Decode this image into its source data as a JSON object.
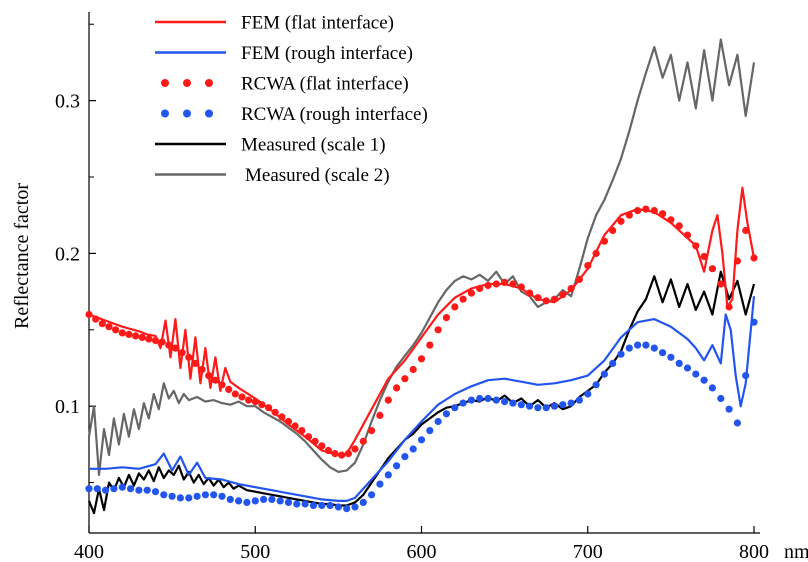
{
  "chart_data": {
    "type": "line",
    "title": "",
    "xlabel": "",
    "ylabel": "Reflectance factor",
    "x_unit_label": "nm",
    "xlim": [
      400,
      800
    ],
    "ylim": [
      0.017,
      0.358
    ],
    "xticks": [
      400,
      500,
      600,
      700,
      800
    ],
    "xtick_labels": [
      "400",
      "500",
      "600",
      "700",
      "800"
    ],
    "yticks": [
      0.1,
      0.2,
      0.3
    ],
    "ytick_labels": [
      "0.1",
      "0.2",
      "0.3"
    ],
    "grid": false,
    "legend_position": "top-left",
    "series": [
      {
        "name": "FEM (flat interface)",
        "style": "line",
        "color": "#ff1a1a",
        "x": [
          400,
          410,
          420,
          430,
          435,
          440,
          443,
          446,
          449,
          452,
          455,
          458,
          461,
          464,
          467,
          470,
          473,
          476,
          479,
          482,
          485,
          490,
          500,
          510,
          520,
          530,
          540,
          550,
          555,
          560,
          570,
          580,
          590,
          600,
          610,
          620,
          630,
          640,
          650,
          660,
          670,
          680,
          690,
          700,
          710,
          720,
          730,
          740,
          750,
          760,
          765,
          770,
          775,
          778,
          781,
          784,
          787,
          790,
          793,
          796,
          800
        ],
        "y": [
          0.16,
          0.156,
          0.152,
          0.149,
          0.147,
          0.146,
          0.138,
          0.156,
          0.132,
          0.157,
          0.125,
          0.15,
          0.118,
          0.145,
          0.115,
          0.138,
          0.112,
          0.132,
          0.11,
          0.125,
          0.116,
          0.112,
          0.105,
          0.097,
          0.088,
          0.08,
          0.071,
          0.068,
          0.069,
          0.078,
          0.098,
          0.118,
          0.13,
          0.145,
          0.16,
          0.171,
          0.177,
          0.18,
          0.18,
          0.177,
          0.17,
          0.168,
          0.176,
          0.19,
          0.212,
          0.225,
          0.229,
          0.227,
          0.22,
          0.21,
          0.205,
          0.188,
          0.215,
          0.225,
          0.2,
          0.165,
          0.17,
          0.215,
          0.243,
          0.22,
          0.197
        ]
      },
      {
        "name": "FEM (rough interface)",
        "style": "line",
        "color": "#2255ee",
        "x": [
          400,
          410,
          420,
          430,
          440,
          445,
          450,
          455,
          460,
          465,
          470,
          480,
          490,
          500,
          510,
          520,
          530,
          540,
          550,
          555,
          560,
          570,
          580,
          590,
          600,
          610,
          620,
          630,
          640,
          650,
          660,
          670,
          680,
          690,
          700,
          710,
          720,
          730,
          740,
          750,
          760,
          765,
          770,
          775,
          780,
          783,
          786,
          789,
          792,
          795,
          800
        ],
        "y": [
          0.059,
          0.059,
          0.06,
          0.059,
          0.062,
          0.069,
          0.058,
          0.067,
          0.055,
          0.063,
          0.053,
          0.052,
          0.049,
          0.047,
          0.045,
          0.043,
          0.041,
          0.039,
          0.038,
          0.038,
          0.04,
          0.052,
          0.064,
          0.078,
          0.09,
          0.101,
          0.108,
          0.113,
          0.117,
          0.118,
          0.116,
          0.114,
          0.115,
          0.117,
          0.12,
          0.13,
          0.145,
          0.155,
          0.157,
          0.152,
          0.144,
          0.138,
          0.13,
          0.14,
          0.128,
          0.16,
          0.15,
          0.12,
          0.1,
          0.115,
          0.172
        ]
      },
      {
        "name": "RCWA (flat interface)",
        "style": "dots",
        "color": "#ff1a1a",
        "x": [
          400,
          404,
          408,
          412,
          416,
          420,
          424,
          428,
          432,
          436,
          440,
          444,
          448,
          452,
          456,
          460,
          464,
          468,
          472,
          476,
          480,
          484,
          488,
          492,
          496,
          500,
          504,
          508,
          512,
          516,
          520,
          524,
          528,
          532,
          536,
          540,
          544,
          548,
          552,
          556,
          560,
          565,
          570,
          575,
          580,
          585,
          590,
          595,
          600,
          605,
          610,
          615,
          620,
          625,
          630,
          635,
          640,
          645,
          650,
          655,
          660,
          665,
          670,
          675,
          680,
          685,
          690,
          695,
          700,
          705,
          710,
          715,
          720,
          725,
          730,
          735,
          740,
          745,
          750,
          755,
          760,
          765,
          770,
          775,
          780,
          785,
          790,
          795,
          800
        ],
        "y": [
          0.16,
          0.157,
          0.154,
          0.152,
          0.15,
          0.148,
          0.147,
          0.146,
          0.145,
          0.144,
          0.143,
          0.142,
          0.14,
          0.138,
          0.135,
          0.132,
          0.128,
          0.124,
          0.12,
          0.117,
          0.114,
          0.111,
          0.108,
          0.106,
          0.104,
          0.103,
          0.101,
          0.099,
          0.096,
          0.093,
          0.09,
          0.087,
          0.084,
          0.08,
          0.077,
          0.074,
          0.071,
          0.069,
          0.068,
          0.069,
          0.072,
          0.077,
          0.084,
          0.094,
          0.104,
          0.112,
          0.118,
          0.124,
          0.131,
          0.14,
          0.15,
          0.158,
          0.165,
          0.17,
          0.174,
          0.177,
          0.179,
          0.18,
          0.181,
          0.18,
          0.178,
          0.174,
          0.171,
          0.169,
          0.17,
          0.173,
          0.177,
          0.183,
          0.192,
          0.2,
          0.208,
          0.215,
          0.221,
          0.225,
          0.228,
          0.229,
          0.228,
          0.226,
          0.222,
          0.218,
          0.212,
          0.205,
          0.198,
          0.19,
          0.18,
          0.165,
          0.195,
          0.215,
          0.197
        ]
      },
      {
        "name": "RCWA (rough interface)",
        "style": "dots",
        "color": "#2255ee",
        "x": [
          400,
          405,
          410,
          415,
          420,
          425,
          430,
          435,
          440,
          445,
          450,
          455,
          460,
          465,
          470,
          475,
          480,
          485,
          490,
          495,
          500,
          505,
          510,
          515,
          520,
          525,
          530,
          535,
          540,
          545,
          550,
          555,
          560,
          565,
          570,
          575,
          580,
          585,
          590,
          595,
          600,
          605,
          610,
          615,
          620,
          625,
          630,
          635,
          640,
          645,
          650,
          655,
          660,
          665,
          670,
          675,
          680,
          685,
          690,
          695,
          700,
          705,
          710,
          715,
          720,
          725,
          730,
          735,
          740,
          745,
          750,
          755,
          760,
          765,
          770,
          775,
          780,
          785,
          790,
          795,
          800
        ],
        "y": [
          0.046,
          0.046,
          0.045,
          0.046,
          0.047,
          0.046,
          0.045,
          0.045,
          0.044,
          0.042,
          0.041,
          0.04,
          0.04,
          0.041,
          0.042,
          0.042,
          0.041,
          0.039,
          0.038,
          0.037,
          0.038,
          0.039,
          0.039,
          0.038,
          0.037,
          0.036,
          0.036,
          0.035,
          0.035,
          0.035,
          0.034,
          0.033,
          0.034,
          0.037,
          0.042,
          0.049,
          0.055,
          0.061,
          0.067,
          0.072,
          0.078,
          0.084,
          0.09,
          0.095,
          0.099,
          0.102,
          0.104,
          0.105,
          0.105,
          0.104,
          0.103,
          0.102,
          0.101,
          0.1,
          0.099,
          0.099,
          0.1,
          0.101,
          0.102,
          0.104,
          0.108,
          0.114,
          0.121,
          0.128,
          0.134,
          0.138,
          0.14,
          0.14,
          0.138,
          0.135,
          0.132,
          0.128,
          0.125,
          0.121,
          0.117,
          0.112,
          0.105,
          0.098,
          0.089,
          0.12,
          0.155
        ]
      },
      {
        "name": "Measured (scale 1)",
        "style": "line",
        "color": "#000000",
        "x": [
          400,
          403,
          406,
          409,
          412,
          415,
          418,
          421,
          424,
          427,
          430,
          433,
          436,
          439,
          442,
          445,
          448,
          451,
          454,
          457,
          460,
          463,
          466,
          469,
          472,
          475,
          478,
          481,
          484,
          487,
          490,
          495,
          500,
          505,
          510,
          515,
          520,
          525,
          530,
          535,
          540,
          545,
          550,
          555,
          560,
          565,
          570,
          575,
          580,
          585,
          590,
          595,
          600,
          605,
          610,
          615,
          620,
          625,
          630,
          635,
          640,
          645,
          650,
          655,
          660,
          665,
          670,
          675,
          680,
          685,
          690,
          695,
          700,
          705,
          710,
          715,
          720,
          725,
          730,
          735,
          740,
          745,
          750,
          755,
          760,
          765,
          770,
          775,
          780,
          785,
          790,
          795,
          800
        ],
        "y": [
          0.038,
          0.03,
          0.046,
          0.032,
          0.05,
          0.045,
          0.053,
          0.047,
          0.055,
          0.048,
          0.056,
          0.052,
          0.058,
          0.051,
          0.06,
          0.053,
          0.058,
          0.055,
          0.061,
          0.052,
          0.057,
          0.05,
          0.055,
          0.049,
          0.053,
          0.048,
          0.052,
          0.047,
          0.05,
          0.046,
          0.048,
          0.045,
          0.044,
          0.043,
          0.042,
          0.041,
          0.04,
          0.039,
          0.038,
          0.037,
          0.036,
          0.036,
          0.035,
          0.035,
          0.037,
          0.042,
          0.05,
          0.058,
          0.066,
          0.072,
          0.078,
          0.082,
          0.088,
          0.092,
          0.096,
          0.099,
          0.1,
          0.102,
          0.104,
          0.103,
          0.106,
          0.103,
          0.107,
          0.102,
          0.105,
          0.1,
          0.104,
          0.099,
          0.102,
          0.098,
          0.1,
          0.106,
          0.11,
          0.114,
          0.122,
          0.128,
          0.136,
          0.15,
          0.162,
          0.17,
          0.185,
          0.168,
          0.183,
          0.165,
          0.18,
          0.163,
          0.175,
          0.16,
          0.188,
          0.17,
          0.182,
          0.16,
          0.18
        ]
      },
      {
        "name": "Measured (scale 2)",
        "style": "line",
        "color": "#666666",
        "x": [
          400,
          403,
          406,
          409,
          412,
          415,
          418,
          421,
          424,
          427,
          430,
          433,
          436,
          439,
          442,
          445,
          448,
          451,
          454,
          457,
          460,
          465,
          470,
          475,
          480,
          485,
          490,
          495,
          500,
          505,
          510,
          515,
          520,
          525,
          530,
          535,
          540,
          545,
          550,
          555,
          560,
          565,
          570,
          575,
          580,
          585,
          590,
          595,
          600,
          605,
          610,
          615,
          620,
          625,
          630,
          635,
          640,
          645,
          650,
          655,
          660,
          665,
          670,
          675,
          680,
          685,
          690,
          695,
          700,
          705,
          710,
          715,
          720,
          725,
          730,
          735,
          740,
          745,
          750,
          755,
          760,
          765,
          770,
          775,
          780,
          785,
          790,
          795,
          800
        ],
        "y": [
          0.08,
          0.1,
          0.055,
          0.085,
          0.068,
          0.092,
          0.075,
          0.095,
          0.08,
          0.098,
          0.085,
          0.102,
          0.092,
          0.108,
          0.098,
          0.115,
          0.105,
          0.11,
          0.102,
          0.108,
          0.104,
          0.106,
          0.103,
          0.104,
          0.102,
          0.101,
          0.103,
          0.1,
          0.1,
          0.096,
          0.093,
          0.09,
          0.086,
          0.082,
          0.077,
          0.071,
          0.065,
          0.06,
          0.057,
          0.058,
          0.063,
          0.075,
          0.09,
          0.104,
          0.116,
          0.126,
          0.133,
          0.14,
          0.148,
          0.158,
          0.168,
          0.176,
          0.182,
          0.185,
          0.183,
          0.186,
          0.182,
          0.188,
          0.18,
          0.185,
          0.175,
          0.172,
          0.165,
          0.168,
          0.17,
          0.176,
          0.172,
          0.19,
          0.21,
          0.225,
          0.235,
          0.248,
          0.262,
          0.28,
          0.3,
          0.318,
          0.335,
          0.315,
          0.33,
          0.3,
          0.325,
          0.295,
          0.333,
          0.3,
          0.34,
          0.31,
          0.33,
          0.29,
          0.325
        ]
      }
    ]
  }
}
